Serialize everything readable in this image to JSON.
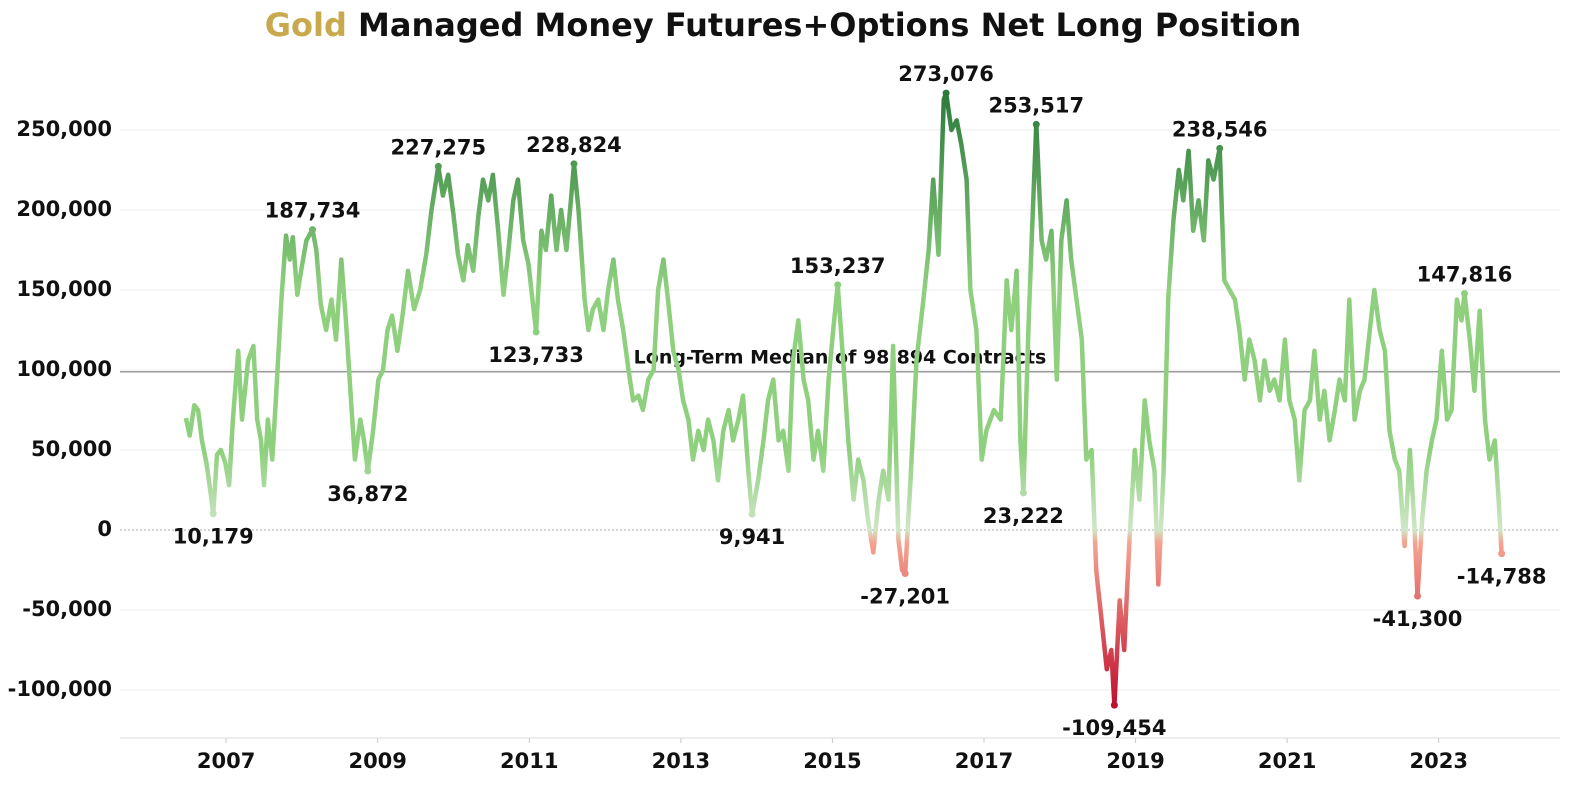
{
  "chart_data": {
    "type": "line",
    "title_highlight": "Gold",
    "title": "Managed Money Futures+Options Net Long Position",
    "highlight_color": "#c9a94d",
    "x": [
      2006.47,
      2006.52,
      2006.58,
      2006.63,
      2006.68,
      2006.74,
      2006.79,
      2006.83,
      2006.88,
      2006.93,
      2006.99,
      2007.04,
      2007.09,
      2007.16,
      2007.21,
      2007.29,
      2007.36,
      2007.41,
      2007.46,
      2007.5,
      2007.55,
      2007.61,
      2007.66,
      2007.73,
      2007.79,
      2007.84,
      2007.88,
      2007.94,
      2007.99,
      2008.06,
      2008.14,
      2008.19,
      2008.25,
      2008.32,
      2008.39,
      2008.45,
      2008.52,
      2008.58,
      2008.64,
      2008.7,
      2008.77,
      2008.82,
      2008.87,
      2008.94,
      2009.01,
      2009.07,
      2009.13,
      2009.19,
      2009.26,
      2009.32,
      2009.4,
      2009.48,
      2009.56,
      2009.64,
      2009.71,
      2009.8,
      2009.86,
      2009.93,
      2010.0,
      2010.06,
      2010.13,
      2010.19,
      2010.26,
      2010.33,
      2010.39,
      2010.46,
      2010.52,
      2010.59,
      2010.66,
      2010.72,
      2010.79,
      2010.85,
      2010.92,
      2010.99,
      2011.09,
      2011.16,
      2011.22,
      2011.29,
      2011.36,
      2011.42,
      2011.49,
      2011.55,
      2011.59,
      2011.65,
      2011.73,
      2011.78,
      2011.84,
      2011.91,
      2011.98,
      2012.04,
      2012.11,
      2012.17,
      2012.24,
      2012.31,
      2012.37,
      2012.44,
      2012.5,
      2012.57,
      2012.64,
      2012.7,
      2012.77,
      2012.83,
      2012.9,
      2012.97,
      2013.03,
      2013.1,
      2013.16,
      2013.23,
      2013.3,
      2013.36,
      2013.43,
      2013.49,
      2013.56,
      2013.63,
      2013.69,
      2013.76,
      2013.82,
      2013.89,
      2013.94,
      2014.02,
      2014.09,
      2014.15,
      2014.22,
      2014.29,
      2014.35,
      2014.42,
      2014.48,
      2014.55,
      2014.62,
      2014.68,
      2014.75,
      2014.81,
      2014.88,
      2014.95,
      2015.01,
      2015.07,
      2015.15,
      2015.21,
      2015.28,
      2015.34,
      2015.41,
      2015.47,
      2015.54,
      2015.61,
      2015.67,
      2015.74,
      2015.8,
      2015.87,
      2015.92,
      2015.96,
      2016.03,
      2016.11,
      2016.2,
      2016.27,
      2016.33,
      2016.4,
      2016.47,
      2016.5,
      2016.57,
      2016.64,
      2016.7,
      2016.77,
      2016.82,
      2016.9,
      2016.97,
      2017.03,
      2017.13,
      2017.22,
      2017.3,
      2017.36,
      2017.43,
      2017.48,
      2017.52,
      2017.59,
      2017.64,
      2017.69,
      2017.76,
      2017.82,
      2017.89,
      2017.96,
      2018.02,
      2018.09,
      2018.15,
      2018.22,
      2018.29,
      2018.35,
      2018.42,
      2018.48,
      2018.55,
      2018.62,
      2018.68,
      2018.72,
      2018.79,
      2018.85,
      2018.92,
      2018.99,
      2019.05,
      2019.12,
      2019.18,
      2019.25,
      2019.3,
      2019.37,
      2019.43,
      2019.5,
      2019.57,
      2019.63,
      2019.7,
      2019.76,
      2019.83,
      2019.9,
      2019.96,
      2020.03,
      2020.11,
      2020.17,
      2020.24,
      2020.31,
      2020.37,
      2020.44,
      2020.5,
      2020.57,
      2020.64,
      2020.7,
      2020.77,
      2020.83,
      2020.9,
      2020.97,
      2021.03,
      2021.1,
      2021.16,
      2021.23,
      2021.3,
      2021.36,
      2021.43,
      2021.49,
      2021.56,
      2021.63,
      2021.69,
      2021.76,
      2021.82,
      2021.89,
      2021.96,
      2022.02,
      2022.09,
      2022.15,
      2022.22,
      2022.29,
      2022.35,
      2022.42,
      2022.48,
      2022.55,
      2022.62,
      2022.68,
      2022.72,
      2022.78,
      2022.84,
      2022.91,
      2022.97,
      2023.04,
      2023.11,
      2023.17,
      2023.24,
      2023.3,
      2023.34,
      2023.41,
      2023.47,
      2023.54,
      2023.61,
      2023.67,
      2023.74,
      2023.79,
      2023.83
    ],
    "values": [
      70000,
      59000,
      78000,
      75000,
      56000,
      42000,
      25000,
      10179,
      47000,
      50000,
      42000,
      28000,
      69000,
      112000,
      69000,
      106000,
      115000,
      69000,
      56000,
      28000,
      69000,
      44000,
      84000,
      144000,
      184000,
      169000,
      183000,
      147000,
      162000,
      181000,
      187734,
      175000,
      141000,
      125000,
      144000,
      119000,
      169000,
      131000,
      87000,
      44000,
      69000,
      56000,
      36872,
      62000,
      94000,
      100000,
      125000,
      134000,
      112000,
      131000,
      162000,
      138000,
      150000,
      172000,
      200000,
      227275,
      209000,
      222000,
      197000,
      172000,
      156000,
      178000,
      162000,
      197000,
      219000,
      206000,
      222000,
      187000,
      147000,
      172000,
      206000,
      219000,
      181000,
      166000,
      123733,
      187000,
      175000,
      209000,
      175000,
      200000,
      175000,
      206000,
      228824,
      200000,
      144000,
      125000,
      138000,
      144000,
      125000,
      150000,
      169000,
      144000,
      125000,
      100000,
      81000,
      84000,
      75000,
      94000,
      100000,
      150000,
      169000,
      144000,
      112000,
      100000,
      81000,
      69000,
      44000,
      62000,
      50000,
      69000,
      56000,
      31000,
      62000,
      75000,
      56000,
      69000,
      84000,
      37000,
      9941,
      31000,
      56000,
      81000,
      94000,
      56000,
      62000,
      37000,
      106000,
      131000,
      94000,
      81000,
      44000,
      62000,
      37000,
      94000,
      125000,
      153237,
      100000,
      56000,
      19000,
      44000,
      31000,
      6000,
      -14000,
      19000,
      37000,
      19000,
      115000,
      -6000,
      -25000,
      -27201,
      31000,
      106000,
      144000,
      175000,
      219000,
      172000,
      269000,
      273076,
      250000,
      256000,
      241000,
      219000,
      150000,
      125000,
      44000,
      62000,
      75000,
      69000,
      156000,
      125000,
      162000,
      56000,
      23222,
      131000,
      194000,
      253517,
      181000,
      169000,
      187000,
      94000,
      181000,
      206000,
      169000,
      144000,
      119000,
      44000,
      50000,
      -25000,
      -56000,
      -87000,
      -75000,
      -109454,
      -44000,
      -75000,
      -6000,
      50000,
      19000,
      81000,
      56000,
      37000,
      -34000,
      37000,
      144000,
      194000,
      225000,
      206000,
      237000,
      187000,
      206000,
      181000,
      231000,
      219000,
      238546,
      156000,
      150000,
      144000,
      125000,
      94000,
      119000,
      106000,
      81000,
      106000,
      87000,
      94000,
      81000,
      119000,
      81000,
      69000,
      31000,
      75000,
      81000,
      112000,
      69000,
      87000,
      56000,
      75000,
      94000,
      81000,
      144000,
      69000,
      87000,
      94000,
      125000,
      150000,
      125000,
      112000,
      62000,
      44000,
      37000,
      -10000,
      50000,
      2000,
      -41300,
      6000,
      37000,
      56000,
      69000,
      112000,
      69000,
      75000,
      144000,
      131000,
      147816,
      119000,
      87000,
      137000,
      69000,
      44000,
      56000,
      19000,
      -14788
    ],
    "colors": {
      "low": "#c0102e",
      "below_zero": "#f5a491",
      "zero": "#cfe6c7",
      "mid": "#8fd07f",
      "high": "#2b7a3b"
    },
    "annotations": [
      {
        "x": 2006.83,
        "value": 10179,
        "label": "10,179"
      },
      {
        "x": 2008.14,
        "value": 187734,
        "label": "187,734"
      },
      {
        "x": 2008.87,
        "value": 36872,
        "label": "36,872"
      },
      {
        "x": 2009.8,
        "value": 227275,
        "label": "227,275"
      },
      {
        "x": 2011.09,
        "value": 123733,
        "label": "123,733"
      },
      {
        "x": 2011.59,
        "value": 228824,
        "label": "228,824"
      },
      {
        "x": 2013.94,
        "value": 9941,
        "label": "9,941"
      },
      {
        "x": 2015.07,
        "value": 153237,
        "label": "153,237"
      },
      {
        "x": 2015.96,
        "value": -27201,
        "label": "-27,201"
      },
      {
        "x": 2016.5,
        "value": 273076,
        "label": "273,076"
      },
      {
        "x": 2017.52,
        "value": 23222,
        "label": "23,222"
      },
      {
        "x": 2017.69,
        "value": 253517,
        "label": "253,517"
      },
      {
        "x": 2018.72,
        "value": -109454,
        "label": "-109,454"
      },
      {
        "x": 2020.11,
        "value": 238546,
        "label": "238,546"
      },
      {
        "x": 2022.72,
        "value": -41300,
        "label": "-41,300"
      },
      {
        "x": 2023.34,
        "value": 147816,
        "label": "147,816"
      },
      {
        "x": 2023.83,
        "value": -14788,
        "label": "-14,788"
      }
    ],
    "median": {
      "value": 98894,
      "label": "Long-Term Median of 98,894 Contracts"
    },
    "xlim": [
      2005.6,
      2024.6
    ],
    "xticks": [
      2007,
      2009,
      2011,
      2013,
      2015,
      2017,
      2019,
      2021,
      2023
    ],
    "ylim": [
      -130000,
      295000
    ],
    "yticks": [
      {
        "value": -100000,
        "label": "-100,000"
      },
      {
        "value": -50000,
        "label": "-50,000"
      },
      0,
      {
        "value": 50000,
        "label": "50,000"
      },
      {
        "value": 100000,
        "label": "100,000"
      },
      {
        "value": 150000,
        "label": "150,000"
      },
      {
        "value": 200000,
        "label": "200,000"
      },
      {
        "value": 250000,
        "label": "250,000"
      }
    ],
    "grid": true
  }
}
